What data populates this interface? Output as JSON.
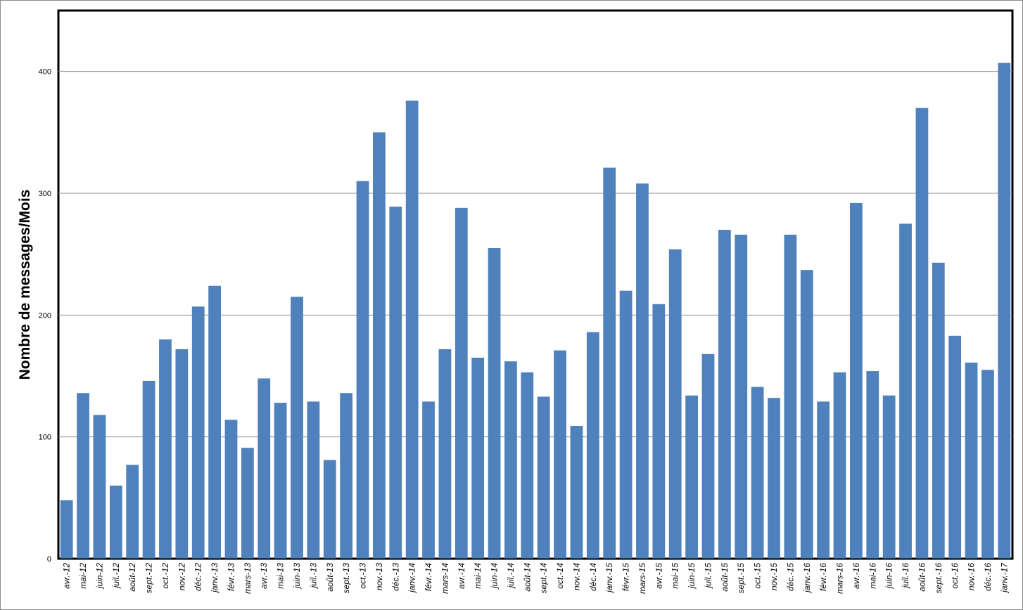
{
  "chart_data": {
    "type": "bar",
    "title": "",
    "xlabel": "",
    "ylabel": "Nombre de messages/Mois",
    "ylim": [
      0,
      450
    ],
    "yticks": [
      0,
      100,
      200,
      300,
      400
    ],
    "grid": true,
    "legend": "none",
    "bar_color": "#4f81bd",
    "categories": [
      "avr.-12",
      "mai-12",
      "juin-12",
      "juil.-12",
      "août-12",
      "sept.-12",
      "oct.-12",
      "nov.-12",
      "déc.-12",
      "janv.-13",
      "févr.-13",
      "mars-13",
      "avr.-13",
      "mai-13",
      "juin-13",
      "juil.-13",
      "août-13",
      "sept.-13",
      "oct.-13",
      "nov.-13",
      "déc.-13",
      "janv.-14",
      "févr.-14",
      "mars-14",
      "avr.-14",
      "mai-14",
      "juin-14",
      "juil.-14",
      "août-14",
      "sept.-14",
      "oct.-14",
      "nov.-14",
      "déc.-14",
      "janv.-15",
      "févr.-15",
      "mars-15",
      "avr.-15",
      "mai-15",
      "juin-15",
      "juil.-15",
      "août-15",
      "sept.-15",
      "oct.-15",
      "nov.-15",
      "déc.-15",
      "janv.-16",
      "févr.-16",
      "mars-16",
      "avr.-16",
      "mai-16",
      "juin-16",
      "juil.-16",
      "août-16",
      "sept.-16",
      "oct.-16",
      "nov.-16",
      "déc.-16",
      "janv.-17"
    ],
    "values": [
      48,
      136,
      118,
      60,
      77,
      146,
      180,
      172,
      207,
      224,
      114,
      91,
      148,
      128,
      215,
      129,
      81,
      136,
      310,
      350,
      289,
      376,
      129,
      172,
      288,
      165,
      255,
      162,
      153,
      133,
      171,
      109,
      186,
      321,
      220,
      308,
      209,
      254,
      134,
      168,
      270,
      266,
      141,
      132,
      266,
      237,
      129,
      153,
      292,
      154,
      134,
      275,
      370,
      243,
      183,
      161,
      155,
      407
    ]
  }
}
